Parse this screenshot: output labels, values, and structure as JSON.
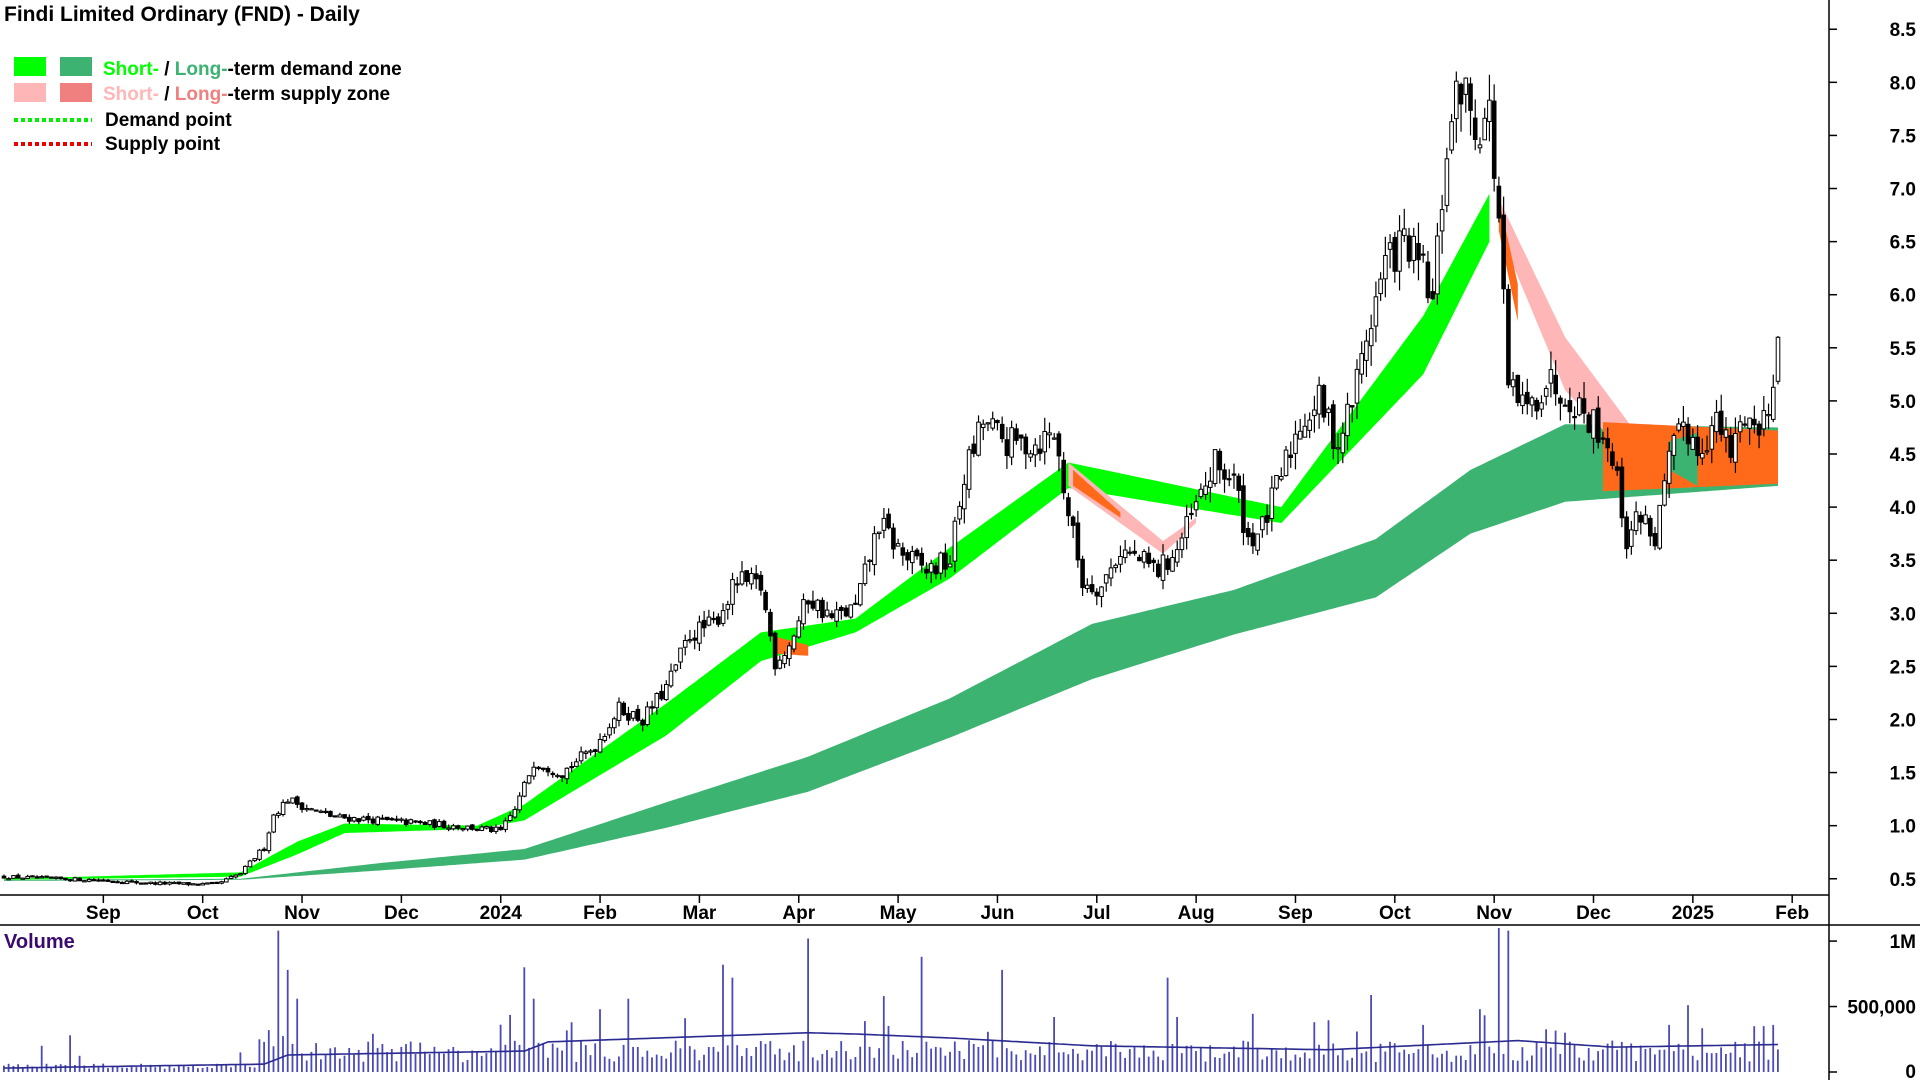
{
  "chart_data": [
    {
      "type": "candlestick",
      "title": "Findi Limited Ordinary (FND) - Daily",
      "ylim": [
        0.3,
        8.7
      ],
      "y_ticks": [
        0.5,
        1.0,
        1.5,
        2.0,
        2.5,
        3.0,
        3.5,
        4.0,
        4.5,
        5.0,
        5.5,
        6.0,
        6.5,
        7.0,
        7.5,
        8.0,
        8.5
      ],
      "y_tick_labels": [
        "0.5",
        "1.0",
        "1.5",
        "2.0",
        "2.5",
        "3.0",
        "3.5",
        "4.0",
        "4.5",
        "5.0",
        "5.5",
        "6.0",
        "6.5",
        "7.0",
        "7.5",
        "8.0",
        "8.5"
      ],
      "x_labels": [
        "Sep",
        "Oct",
        "Nov",
        "Dec",
        "2024",
        "Feb",
        "Mar",
        "Apr",
        "May",
        "Jun",
        "Jul",
        "Aug",
        "Sep",
        "Oct",
        "Nov",
        "Dec",
        "2025",
        "Feb"
      ],
      "x_label_index": [
        21,
        42,
        63,
        84,
        105,
        126,
        147,
        168,
        189,
        210,
        231,
        252,
        273,
        294,
        315,
        336,
        357,
        378
      ],
      "grid": false,
      "legend": {
        "position": "top-left",
        "entries": [
          {
            "short": "Short-",
            "sep": " / ",
            "long": "Long-",
            "rest": "-term demand zone"
          },
          {
            "short": "Short-",
            "sep": " / ",
            "long": "Long-",
            "rest": "-term supply zone"
          },
          {
            "label": "Demand point"
          },
          {
            "label": "Supply point"
          }
        ]
      },
      "price_anchors": [
        [
          0,
          0.52
        ],
        [
          10,
          0.5
        ],
        [
          20,
          0.49
        ],
        [
          30,
          0.46
        ],
        [
          40,
          0.45
        ],
        [
          45,
          0.45
        ],
        [
          50,
          0.55
        ],
        [
          55,
          0.8
        ],
        [
          57,
          1.1
        ],
        [
          60,
          1.25
        ],
        [
          65,
          1.15
        ],
        [
          70,
          1.08
        ],
        [
          80,
          1.05
        ],
        [
          95,
          1.0
        ],
        [
          105,
          0.95
        ],
        [
          108,
          1.15
        ],
        [
          112,
          1.6
        ],
        [
          115,
          1.55
        ],
        [
          118,
          1.5
        ],
        [
          125,
          1.75
        ],
        [
          130,
          2.1
        ],
        [
          135,
          2.0
        ],
        [
          140,
          2.3
        ],
        [
          145,
          2.8
        ],
        [
          150,
          2.9
        ],
        [
          155,
          3.3
        ],
        [
          160,
          3.25
        ],
        [
          163,
          2.55
        ],
        [
          166,
          2.7
        ],
        [
          170,
          3.15
        ],
        [
          175,
          2.95
        ],
        [
          180,
          3.05
        ],
        [
          185,
          3.85
        ],
        [
          190,
          3.55
        ],
        [
          195,
          3.4
        ],
        [
          200,
          3.5
        ],
        [
          203,
          4.3
        ],
        [
          207,
          4.8
        ],
        [
          212,
          4.6
        ],
        [
          218,
          4.6
        ],
        [
          222,
          4.7
        ],
        [
          225,
          3.95
        ],
        [
          228,
          3.3
        ],
        [
          232,
          3.25
        ],
        [
          236,
          3.6
        ],
        [
          240,
          3.5
        ],
        [
          244,
          3.4
        ],
        [
          248,
          3.6
        ],
        [
          252,
          4.0
        ],
        [
          256,
          4.4
        ],
        [
          260,
          4.25
        ],
        [
          263,
          3.7
        ],
        [
          266,
          3.8
        ],
        [
          270,
          4.3
        ],
        [
          274,
          4.8
        ],
        [
          278,
          5.0
        ],
        [
          282,
          4.6
        ],
        [
          285,
          5.0
        ],
        [
          288,
          5.6
        ],
        [
          292,
          6.3
        ],
        [
          296,
          6.5
        ],
        [
          300,
          6.2
        ],
        [
          302,
          5.9
        ],
        [
          305,
          7.4
        ],
        [
          308,
          8.0
        ],
        [
          311,
          7.6
        ],
        [
          314,
          7.7
        ],
        [
          316,
          6.7
        ],
        [
          318,
          5.1
        ],
        [
          322,
          4.9
        ],
        [
          326,
          5.2
        ],
        [
          330,
          5.1
        ],
        [
          334,
          4.9
        ],
        [
          338,
          4.7
        ],
        [
          340,
          4.5
        ],
        [
          343,
          3.7
        ],
        [
          346,
          3.95
        ],
        [
          349,
          3.7
        ],
        [
          352,
          4.4
        ],
        [
          355,
          4.8
        ],
        [
          358,
          4.55
        ],
        [
          362,
          4.8
        ],
        [
          365,
          4.5
        ],
        [
          368,
          4.9
        ],
        [
          371,
          4.7
        ],
        [
          373,
          5.0
        ],
        [
          375,
          5.6
        ]
      ],
      "candle_count": 376,
      "demand_zone_long": {
        "anchors": [
          [
            0,
            0.49,
            0.48
          ],
          [
            50,
            0.5,
            0.49
          ],
          [
            80,
            0.65,
            0.58
          ],
          [
            110,
            0.78,
            0.68
          ],
          [
            140,
            1.22,
            0.98
          ],
          [
            170,
            1.65,
            1.32
          ],
          [
            200,
            2.2,
            1.83
          ],
          [
            230,
            2.9,
            2.38
          ],
          [
            260,
            3.22,
            2.8
          ],
          [
            290,
            3.7,
            3.15
          ],
          [
            310,
            4.35,
            3.75
          ],
          [
            330,
            4.78,
            4.05
          ],
          [
            375,
            4.75,
            4.2
          ]
        ]
      },
      "demand_zone_short": {
        "anchors": [
          [
            0,
            0.5,
            0.49
          ],
          [
            50,
            0.56,
            0.52
          ],
          [
            62,
            0.85,
            0.73
          ],
          [
            72,
            1.02,
            0.93
          ],
          [
            100,
            1.0,
            0.97
          ],
          [
            110,
            1.2,
            1.05
          ],
          [
            140,
            2.15,
            1.85
          ],
          [
            160,
            2.82,
            2.55
          ],
          [
            180,
            2.95,
            2.82
          ],
          [
            200,
            3.62,
            3.33
          ],
          [
            225,
            4.42,
            4.18
          ],
          [
            270,
            4.0,
            3.85
          ],
          [
            300,
            5.8,
            5.25
          ],
          [
            314,
            6.95,
            6.5
          ]
        ]
      },
      "supply_zone_short": {
        "anchors": [
          [
            225,
            4.42,
            4.2
          ],
          [
            245,
            3.68,
            3.56
          ],
          [
            252,
            3.9,
            3.85
          ]
        ],
        "anchors_b": [
          [
            316,
            6.9,
            6.6
          ],
          [
            330,
            5.6,
            5.1
          ],
          [
            345,
            4.7,
            4.4
          ],
          [
            352,
            4.6,
            4.4
          ]
        ]
      },
      "supply_zone_long": {
        "anchors": [
          [
            338,
            4.8,
            4.15
          ],
          [
            375,
            4.72,
            4.22
          ]
        ]
      },
      "colors": {
        "candle": "#000000",
        "demand_short": "#00ff00",
        "demand_long": "#3cb371",
        "supply_short": "#ffb6b6",
        "supply_long": "#ff6a1a",
        "legend_supply_short": "#ffb6b6",
        "legend_supply_long": "#f08080",
        "demand_point": "#00ee00",
        "supply_point": "#ee0000",
        "volume_bar": "#4a4ab8",
        "volume_ma": "#2a2a90",
        "volume_title": "#3a0a6e"
      }
    },
    {
      "type": "bar",
      "title": "Volume",
      "ylim": [
        0,
        1100000
      ],
      "y_ticks": [
        0,
        500000,
        1000000
      ],
      "y_tick_labels": [
        "0",
        "500,000",
        "1M"
      ],
      "volume_base": 210000,
      "volume_spikes": [
        [
          8,
          200000
        ],
        [
          14,
          280000
        ],
        [
          50,
          150000
        ],
        [
          54,
          250000
        ],
        [
          56,
          320000
        ],
        [
          58,
          1080000
        ],
        [
          60,
          780000
        ],
        [
          62,
          560000
        ],
        [
          110,
          800000
        ],
        [
          112,
          560000
        ],
        [
          120,
          380000
        ],
        [
          126,
          480000
        ],
        [
          132,
          560000
        ],
        [
          152,
          820000
        ],
        [
          154,
          720000
        ],
        [
          170,
          1020000
        ],
        [
          186,
          580000
        ],
        [
          194,
          880000
        ],
        [
          211,
          780000
        ],
        [
          222,
          420000
        ],
        [
          246,
          720000
        ],
        [
          248,
          420000
        ],
        [
          300,
          360000
        ],
        [
          312,
          480000
        ],
        [
          316,
          1100000
        ],
        [
          318,
          1080000
        ],
        [
          330,
          300000
        ],
        [
          352,
          360000
        ],
        [
          356,
          510000
        ],
        [
          370,
          350000
        ],
        [
          374,
          360000
        ]
      ],
      "ma_anchors": [
        [
          0,
          30000
        ],
        [
          55,
          60000
        ],
        [
          60,
          130000
        ],
        [
          110,
          160000
        ],
        [
          115,
          230000
        ],
        [
          170,
          300000
        ],
        [
          180,
          290000
        ],
        [
          200,
          260000
        ],
        [
          230,
          200000
        ],
        [
          280,
          170000
        ],
        [
          320,
          240000
        ],
        [
          340,
          190000
        ],
        [
          375,
          210000
        ]
      ]
    }
  ]
}
